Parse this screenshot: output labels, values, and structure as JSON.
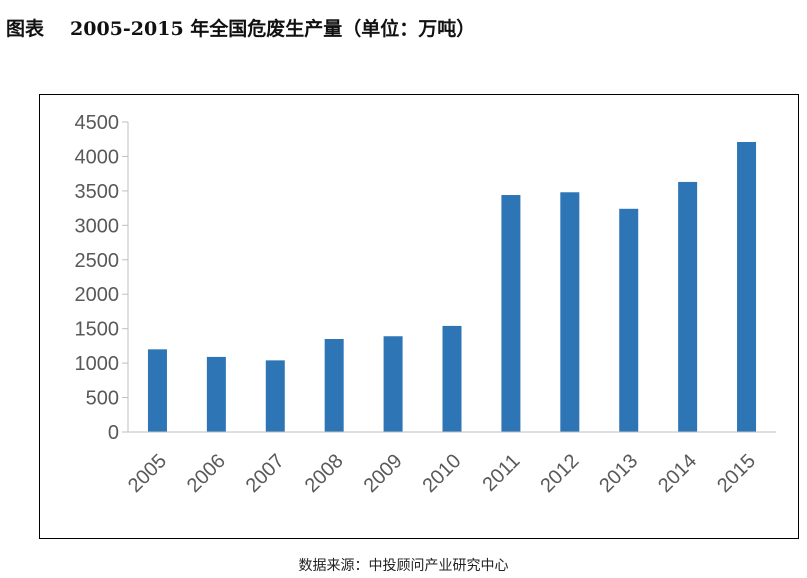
{
  "figure": {
    "label": "图表",
    "title": "2005-2015 年全国危废生产量（单位：万吨）"
  },
  "source": "数据来源：中投顾问产业研究中心",
  "chart_data": {
    "type": "bar",
    "categories": [
      "2005",
      "2006",
      "2007",
      "2008",
      "2009",
      "2010",
      "2011",
      "2012",
      "2013",
      "2014",
      "2015"
    ],
    "values": [
      1200,
      1090,
      1040,
      1350,
      1390,
      1540,
      3440,
      3480,
      3240,
      3630,
      4210
    ],
    "yticks": [
      0,
      500,
      1000,
      1500,
      2000,
      2500,
      3000,
      3500,
      4000,
      4500
    ],
    "ylim": [
      0,
      4500
    ],
    "bar_color": "#2e75b6",
    "grid": false,
    "legend": "none"
  }
}
